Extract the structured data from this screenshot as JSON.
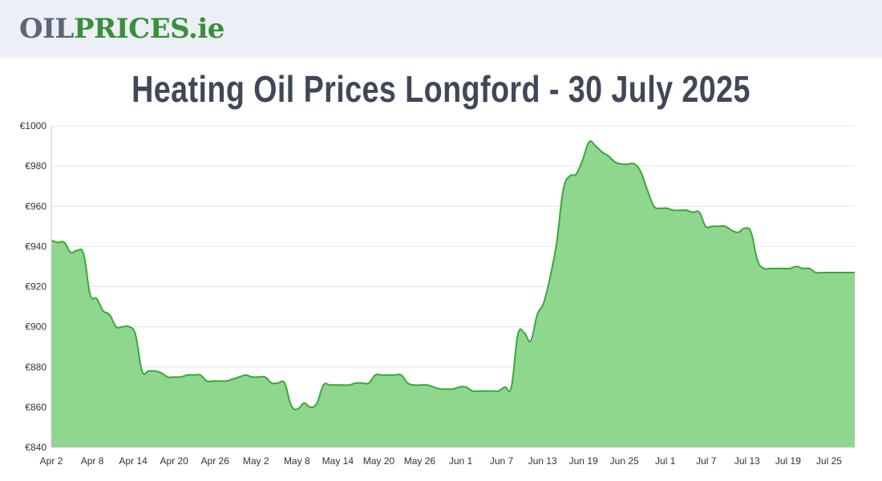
{
  "header": {
    "logo_part1": "OIL",
    "logo_part2": "PRICES",
    "logo_part3": ".ie"
  },
  "page": {
    "title": "Heating Oil Prices Longford - 30 July 2025"
  },
  "colors": {
    "line": "#3aa83a",
    "fill": "#8fd68f",
    "grid": "#e6e6e6"
  },
  "chart_data": {
    "type": "area",
    "ylim": [
      840,
      1000
    ],
    "y_ticks": [
      "€840",
      "€860",
      "€880",
      "€900",
      "€920",
      "€940",
      "€960",
      "€980",
      "€1000"
    ],
    "x_ticks": [
      "Apr 2",
      "Apr 8",
      "Apr 14",
      "Apr 20",
      "Apr 26",
      "May 2",
      "May 8",
      "May 14",
      "May 20",
      "May 26",
      "Jun 1",
      "Jun 7",
      "Jun 13",
      "Jun 19",
      "Jun 25",
      "Jul 1",
      "Jul 7",
      "Jul 13",
      "Jul 19",
      "Jul 25"
    ],
    "grid": true,
    "series": [
      {
        "values": [
          943,
          942,
          942,
          937,
          938,
          936,
          916,
          914,
          908,
          906,
          900,
          900,
          900,
          896,
          878,
          878,
          878,
          877,
          875,
          875,
          875,
          876,
          876,
          876,
          873,
          873,
          873,
          873,
          874,
          875,
          876,
          875,
          875,
          875,
          872,
          872,
          872,
          861,
          859,
          862,
          860,
          862,
          871,
          871,
          871,
          871,
          871,
          872,
          872,
          872,
          876,
          876,
          876,
          876,
          876,
          872,
          871,
          871,
          871,
          870,
          869,
          869,
          869,
          870,
          870,
          868,
          868,
          868,
          868,
          868,
          870,
          870,
          896,
          897,
          893,
          906,
          912,
          925,
          942,
          968,
          975,
          976,
          983,
          992,
          990,
          987,
          985,
          982,
          981,
          981,
          981,
          977,
          968,
          960,
          959,
          959,
          958,
          958,
          958,
          957,
          957,
          950,
          950,
          950,
          950,
          948,
          947,
          949,
          947,
          933,
          929,
          929,
          929,
          929,
          929,
          930,
          929,
          929,
          927,
          927,
          927,
          927,
          927,
          927,
          927
        ]
      }
    ]
  }
}
